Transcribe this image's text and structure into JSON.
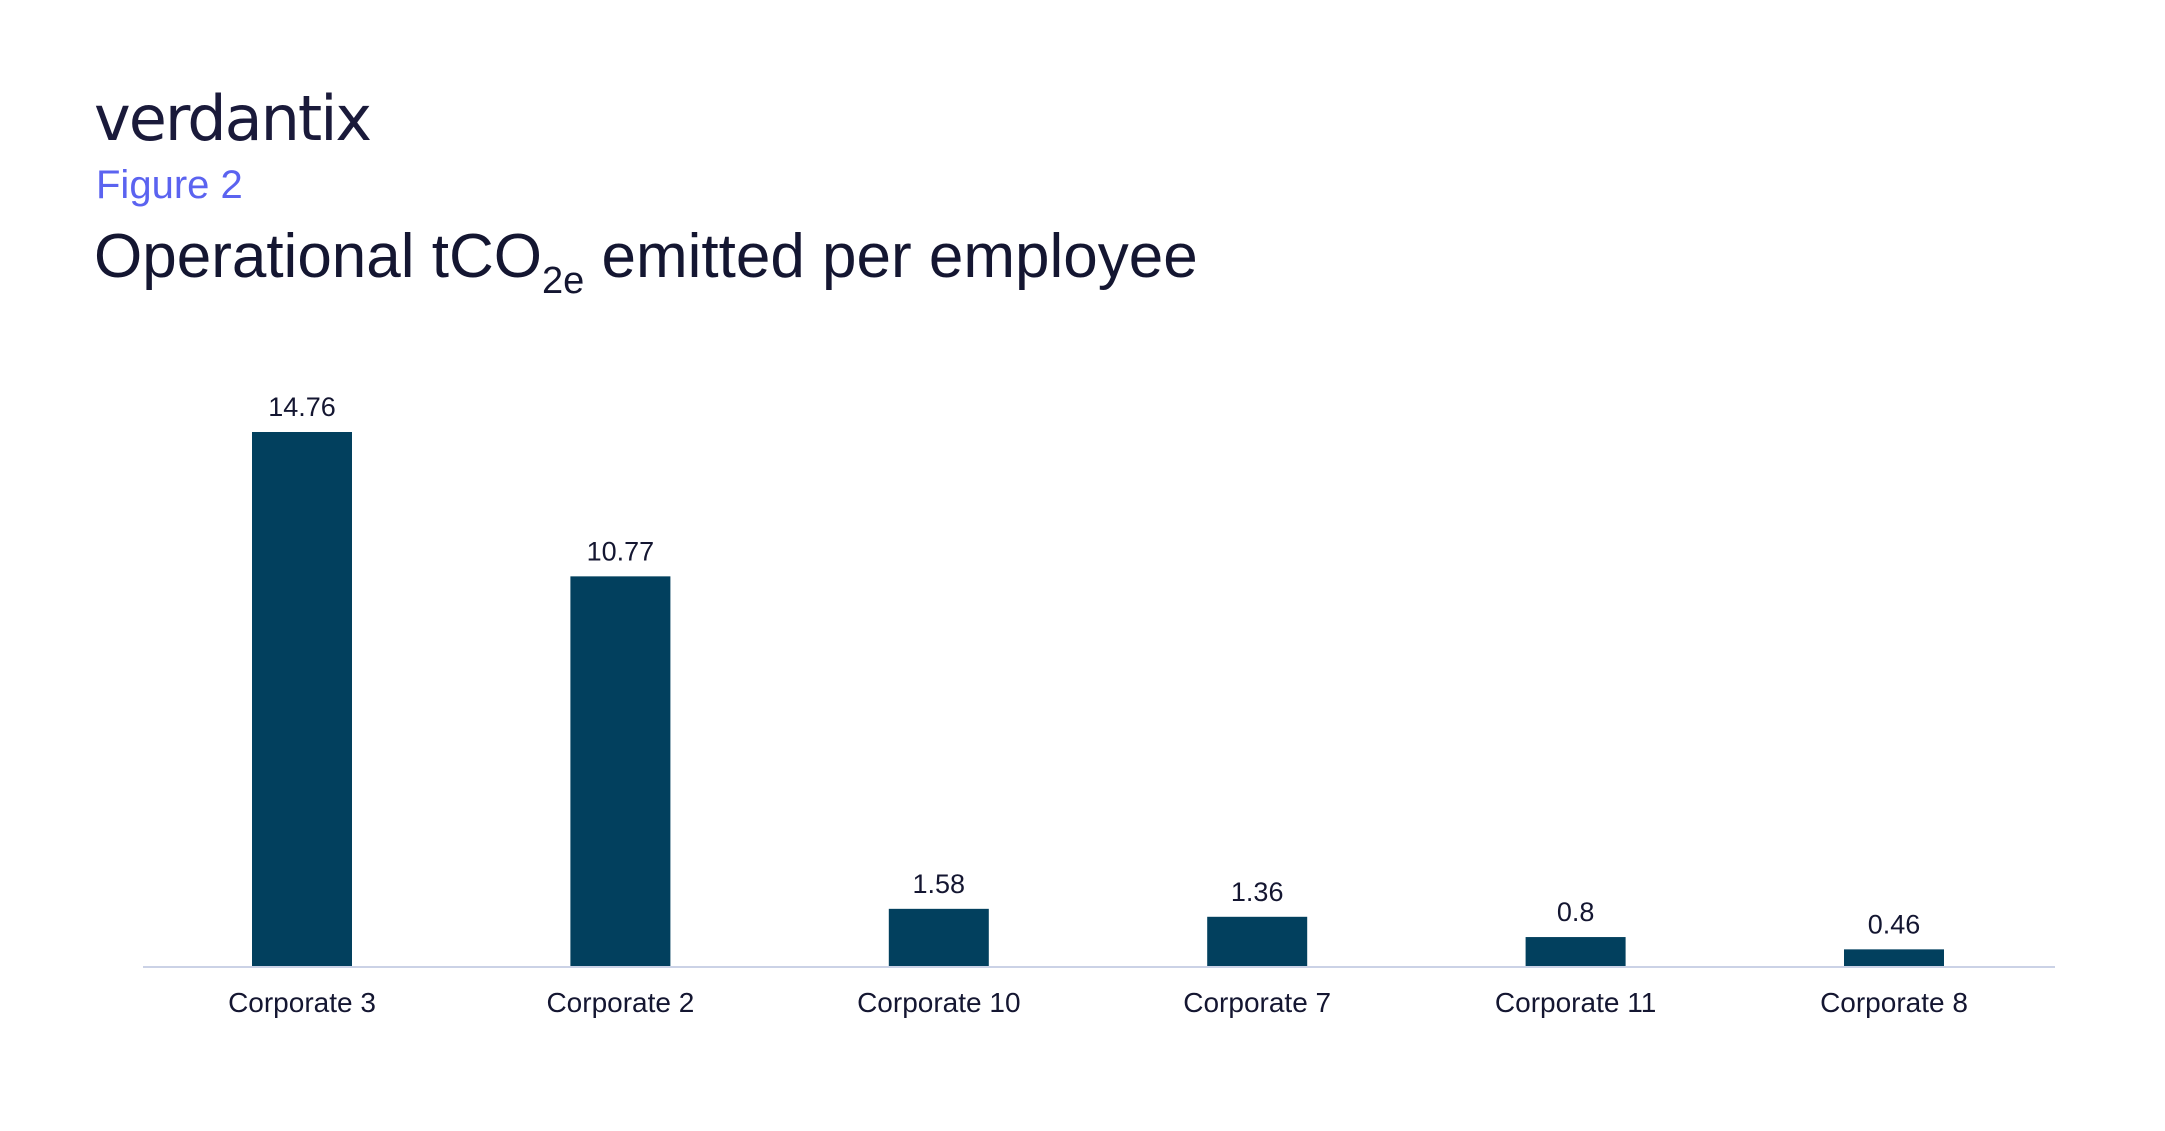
{
  "header": {
    "brand": "verdantix",
    "figure_label": "Figure 2",
    "title_main": "Operational tCO",
    "title_sub": "2e",
    "title_rest": " emitted per employee"
  },
  "colors": {
    "bar": "#02405E",
    "axis": "#CBD2E6",
    "figure_label": "#5B63F0",
    "text": "#141631"
  },
  "chart_data": {
    "type": "bar",
    "title": "Operational tCO2e emitted per employee",
    "xlabel": "",
    "ylabel": "",
    "categories": [
      "Corporate 3",
      "Corporate 2",
      "Corporate 10",
      "Corporate 7",
      "Corporate 11",
      "Corporate 8"
    ],
    "values": [
      14.76,
      10.77,
      1.58,
      1.36,
      0.8,
      0.46
    ],
    "data_labels": [
      "14.76",
      "10.77",
      "1.58",
      "1.36",
      "0.8",
      "0.46"
    ],
    "ylim": [
      0,
      14.76
    ],
    "grid": false,
    "legend": "none"
  }
}
